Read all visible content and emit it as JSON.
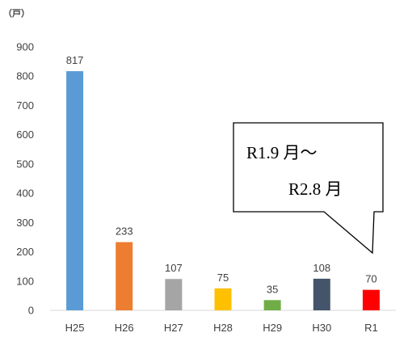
{
  "chart_data": {
    "type": "bar",
    "unit_label": "（戸）",
    "categories": [
      "H25",
      "H26",
      "H27",
      "H28",
      "H29",
      "H30",
      "R1"
    ],
    "values": [
      817,
      233,
      107,
      75,
      35,
      108,
      70
    ],
    "data_labels": [
      "817",
      "233",
      "107",
      "75",
      "35",
      "108",
      "70"
    ],
    "colors": [
      "#5B9BD5",
      "#ED7D31",
      "#A5A5A5",
      "#FFC000",
      "#70AD47",
      "#44546A",
      "#FF0000"
    ],
    "ylim": [
      0,
      900
    ],
    "yticks": [
      0,
      100,
      200,
      300,
      400,
      500,
      600,
      700,
      800,
      900
    ],
    "grid": false,
    "annotation": {
      "line1": "R1.9 月～",
      "line2": "R2.8 月",
      "points_to": "R1"
    }
  }
}
